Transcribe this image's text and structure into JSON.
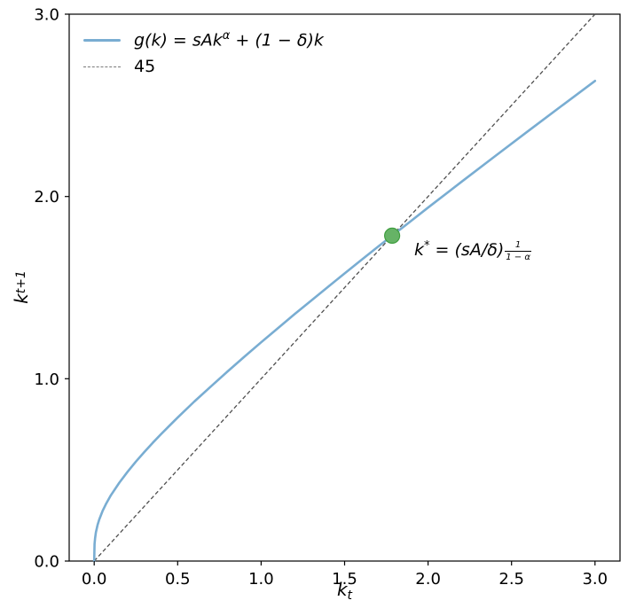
{
  "figure": {
    "background": "#ffffff"
  },
  "legend": {
    "item1": {
      "pre": "g(k) = sAk",
      "sup": "α",
      "post": " + (1 − δ)k"
    },
    "item2": {
      "label": "45"
    }
  },
  "annotation": {
    "base": "k",
    "sup": "*",
    "mid": " = (sA/δ)",
    "frac_num": "1",
    "frac_den": "1 − α"
  },
  "axes": {
    "xlabel": {
      "base": "k",
      "sub": "t"
    },
    "ylabel": {
      "base": "k",
      "sub": "t+1"
    },
    "xlim": [
      -0.15,
      3.15
    ],
    "ylim": [
      0,
      3
    ],
    "xticks": {
      "values": [
        0.0,
        0.5,
        1.0,
        1.5,
        2.0,
        2.5,
        3.0
      ],
      "labels": [
        "0.0",
        "0.5",
        "1.0",
        "1.5",
        "2.0",
        "2.5",
        "3.0"
      ]
    },
    "yticks": {
      "values": [
        0.0,
        1.0,
        2.0,
        3.0
      ],
      "labels": [
        "0.0",
        "1.0",
        "2.0",
        "3.0"
      ]
    }
  },
  "colors": {
    "curve": "#79add2",
    "line45": "#4f4f4f",
    "legend_dash": "#7a7a7a",
    "dot_fill": "#66b366",
    "dot_edge": "#3f9e3f",
    "spine": "#000000"
  },
  "chart_data": {
    "type": "line",
    "title": "",
    "xlabel": "k_t",
    "ylabel": "k_{t+1}",
    "xlim": [
      -0.15,
      3.15
    ],
    "ylim": [
      0,
      3
    ],
    "grid": false,
    "legend_position": "upper left",
    "x": [
      0,
      0.002,
      0.005,
      0.01,
      0.02,
      0.03,
      0.05,
      0.07,
      0.1,
      0.15,
      0.2,
      0.25,
      0.3,
      0.35,
      0.4,
      0.45,
      0.5,
      0.6,
      0.7,
      0.8,
      0.9,
      1.0,
      1.1,
      1.2,
      1.3,
      1.4,
      1.5,
      1.6,
      1.7,
      1.8,
      1.9,
      2.0,
      2.2,
      2.4,
      2.6,
      2.8,
      3.0
    ],
    "series": [
      {
        "name": "g(k) = sAk^α + (1 − δ)k",
        "style": "solid",
        "values": [
          0,
          0.094,
          0.125,
          0.157,
          0.198,
          0.228,
          0.274,
          0.312,
          0.361,
          0.43,
          0.49,
          0.546,
          0.598,
          0.648,
          0.696,
          0.742,
          0.787,
          0.875,
          0.959,
          1.041,
          1.121,
          1.2,
          1.277,
          1.354,
          1.429,
          1.504,
          1.578,
          1.651,
          1.724,
          1.796,
          1.867,
          1.939,
          2.08,
          2.22,
          2.359,
          2.497,
          2.634
        ]
      },
      {
        "name": "45",
        "style": "dashed",
        "x": [
          0,
          3
        ],
        "values": [
          0,
          3
        ]
      }
    ],
    "fixed_point": {
      "x": 1.785,
      "y": 1.785,
      "label": "k* = (sA/δ)^(1/(1−α))"
    }
  }
}
